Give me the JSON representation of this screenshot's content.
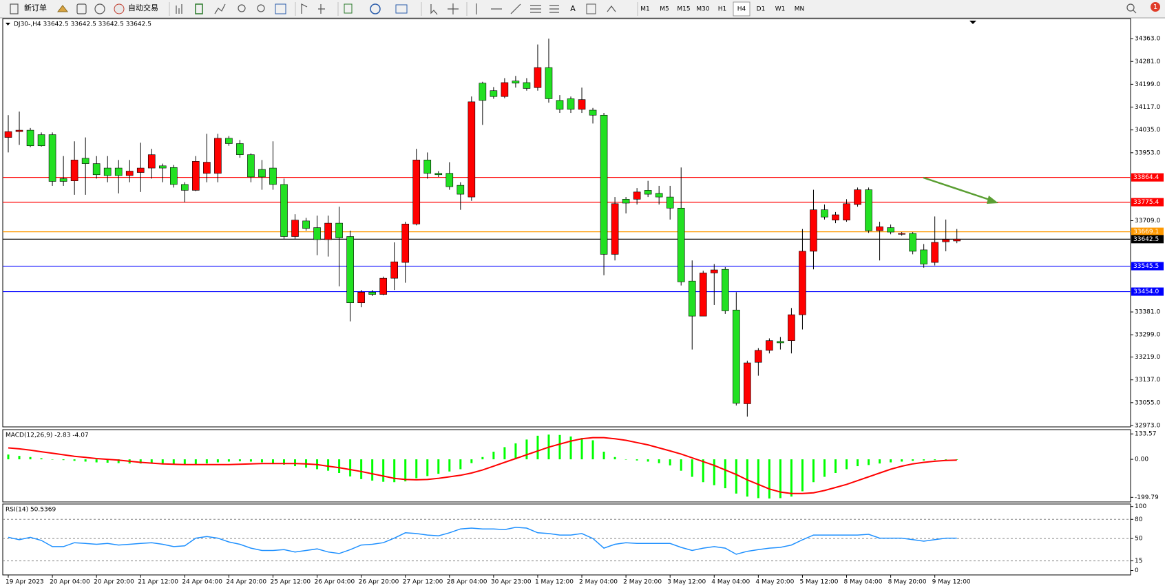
{
  "toolbar": {
    "new_order": "新订单",
    "auto_trading": "自动交易",
    "text_tool": "A",
    "timeframes": [
      "M1",
      "M5",
      "M15",
      "M30",
      "H1",
      "H4",
      "D1",
      "W1",
      "MN"
    ],
    "active_timeframe": 5,
    "notifications": "1"
  },
  "chart_data": [
    {
      "type": "candlestick",
      "title": "DJ30-,H4  33642.5 33642.5 33642.5 33642.5",
      "up_color": "#ff0000",
      "down_color": "#22e022",
      "categories": [
        "19 Apr 2023",
        null,
        null,
        null,
        "20 Apr 04:00",
        null,
        null,
        null,
        "20 Apr 20:00",
        null,
        null,
        null,
        "21 Apr 12:00",
        null,
        null,
        null,
        "24 Apr 04:00",
        null,
        null,
        null,
        "24 Apr 20:00",
        null,
        null,
        null,
        "25 Apr 12:00",
        null,
        null,
        null,
        "26 Apr 04:00",
        null,
        null,
        null,
        "26 Apr 20:00",
        null,
        null,
        null,
        "27 Apr 12:00",
        null,
        null,
        null,
        "28 Apr 04:00",
        null,
        null,
        null,
        "30 Apr 23:00",
        null,
        null,
        null,
        "1 May 12:00",
        null,
        null,
        null,
        "2 May 04:00",
        null,
        null,
        null,
        "2 May 20:00",
        null,
        null,
        null,
        "3 May 12:00",
        null,
        null,
        null,
        "4 May 04:00",
        null,
        null,
        null,
        "4 May 20:00",
        null,
        null,
        null,
        "5 May 12:00",
        null,
        null,
        null,
        "8 May 04:00",
        null,
        null,
        null,
        "8 May 20:00",
        null,
        null,
        null,
        "9 May 12:00",
        null,
        null
      ],
      "open": [
        34008,
        34029,
        34034,
        34018,
        34018,
        33860,
        33852,
        33933,
        33914,
        33898,
        33898,
        33871,
        33882,
        33898,
        33906,
        33900,
        33839,
        33818,
        33879,
        33879,
        34005,
        33986,
        33946,
        33893,
        33898,
        33839,
        33652,
        33708,
        33684,
        33641,
        33700,
        33652,
        33414,
        33452,
        33444,
        33502,
        33559,
        33697,
        33927,
        33879,
        33879,
        33836,
        33794,
        34203,
        34176,
        34155,
        34211,
        34205,
        34187,
        34259,
        34141,
        34147,
        34109,
        34106,
        34088,
        33588,
        33786,
        33786,
        33818,
        33807,
        33794,
        33754,
        33492,
        33366,
        33521,
        33534,
        33388,
        33051,
        33200,
        33243,
        33275,
        33278,
        33371,
        33599,
        33748,
        33711,
        33711,
        33767,
        33820,
        33673,
        33684,
        33660,
        33663,
        33604,
        33559,
        33633,
        33636
      ],
      "high": [
        34088,
        34101,
        34042,
        34026,
        34026,
        33941,
        33994,
        34008,
        33941,
        33941,
        33927,
        33927,
        33989,
        33967,
        33914,
        33909,
        33847,
        33941,
        34021,
        34021,
        34013,
        33999,
        33951,
        33927,
        33994,
        33860,
        33732,
        33719,
        33727,
        33727,
        33759,
        33673,
        33460,
        33460,
        33508,
        33631,
        33705,
        33967,
        33954,
        33887,
        33919,
        33847,
        34155,
        34208,
        34189,
        34221,
        34229,
        34221,
        34342,
        34363,
        34160,
        34155,
        34187,
        34114,
        34096,
        33794,
        33794,
        33826,
        33852,
        33834,
        33834,
        33900,
        33566,
        33529,
        33553,
        33542,
        33452,
        33206,
        33251,
        33286,
        33291,
        33395,
        33679,
        33820,
        33767,
        33740,
        33786,
        33828,
        33828,
        33705,
        33695,
        33668,
        33668,
        33625,
        33724,
        33713,
        33679
      ],
      "low": [
        33954,
        33981,
        33973,
        33975,
        33834,
        33834,
        33802,
        33802,
        33860,
        33847,
        33807,
        33847,
        33812,
        33860,
        33847,
        33828,
        33775,
        33815,
        33847,
        33847,
        33978,
        33935,
        33847,
        33820,
        33820,
        33641,
        33641,
        33673,
        33585,
        33580,
        33473,
        33347,
        33398,
        33438,
        33441,
        33460,
        33486,
        33692,
        33860,
        33866,
        33820,
        33748,
        33780,
        34053,
        34147,
        34149,
        34187,
        34176,
        34176,
        34133,
        34096,
        34096,
        34096,
        34058,
        33513,
        33566,
        33735,
        33767,
        33794,
        33767,
        33713,
        33476,
        33246,
        33366,
        33406,
        33374,
        33045,
        33005,
        33152,
        33232,
        33246,
        33232,
        33318,
        33534,
        33713,
        33700,
        33705,
        33759,
        33665,
        33566,
        33660,
        33655,
        33588,
        33540,
        33548,
        33599,
        33628
      ],
      "close": [
        34029,
        34034,
        33978,
        33978,
        33850,
        33850,
        33927,
        33914,
        33874,
        33871,
        33871,
        33887,
        33898,
        33946,
        33898,
        33839,
        33818,
        33922,
        33919,
        34005,
        33986,
        33946,
        33866,
        33866,
        33839,
        33652,
        33711,
        33681,
        33641,
        33700,
        33647,
        33414,
        33452,
        33444,
        33502,
        33561,
        33697,
        33927,
        33879,
        33874,
        33831,
        33804,
        34136,
        34141,
        34155,
        34205,
        34203,
        34184,
        34259,
        34147,
        34109,
        34109,
        34144,
        34088,
        33588,
        33770,
        33772,
        33812,
        33804,
        33794,
        33754,
        33489,
        33366,
        33521,
        33532,
        33385,
        33053,
        33198,
        33243,
        33278,
        33270,
        33371,
        33599,
        33748,
        33722,
        33730,
        33770,
        33820,
        33673,
        33687,
        33668,
        33663,
        33599,
        33553,
        33631,
        33641,
        33642.5
      ],
      "ylim": [
        32968,
        34435
      ],
      "yticks": [
        {
          "value": 34363,
          "label": "34363.0"
        },
        {
          "value": 34281,
          "label": "34281.0"
        },
        {
          "value": 34199,
          "label": "34199.0"
        },
        {
          "value": 34117,
          "label": "34117.0"
        },
        {
          "value": 34035,
          "label": "34035.0"
        },
        {
          "value": 33953,
          "label": "33953.0"
        },
        {
          "value": 33709,
          "label": "33709.0"
        },
        {
          "value": 33381,
          "label": "33381.0"
        },
        {
          "value": 33299,
          "label": "33299.0"
        },
        {
          "value": 33219,
          "label": "33219.0"
        },
        {
          "value": 33137,
          "label": "33137.0"
        },
        {
          "value": 33055,
          "label": "33055.0"
        },
        {
          "value": 32973,
          "label": "32973.0"
        }
      ],
      "levels": [
        {
          "value": 33864.4,
          "color": "#ff0000"
        },
        {
          "value": 33775.4,
          "color": "#ff0000"
        },
        {
          "value": 33669.1,
          "color": "#ff9900"
        },
        {
          "value": 33642.5,
          "color": "#000000"
        },
        {
          "value": 33545.5,
          "color": "#0000ff"
        },
        {
          "value": 33454,
          "label": "33454.0",
          "color": "#0000ff"
        }
      ]
    },
    {
      "type": "macd",
      "title": "MACD(12,26,9) -2.83 -4.07",
      "histogram": {
        "color": "#00ff00",
        "values": [
          25,
          18,
          12,
          6,
          0,
          -4,
          -8,
          -12,
          -16,
          -18,
          -20,
          -22,
          -22,
          -22,
          -24,
          -26,
          -28,
          -26,
          -22,
          -16,
          -12,
          -10,
          -12,
          -16,
          -20,
          -28,
          -36,
          -44,
          -52,
          -60,
          -72,
          -90,
          -104,
          -112,
          -118,
          -120,
          -116,
          -100,
          -88,
          -76,
          -64,
          -52,
          -20,
          12,
          40,
          64,
          84,
          104,
          124,
          130,
          128,
          120,
          112,
          100,
          40,
          12,
          0,
          -6,
          -12,
          -20,
          -32,
          -60,
          -92,
          -120,
          -136,
          -152,
          -180,
          -196,
          -204,
          -206,
          -204,
          -196,
          -168,
          -120,
          -92,
          -72,
          -52,
          -36,
          -30,
          -22,
          -16,
          -12,
          -8,
          -6,
          -4,
          -3,
          -2.83
        ]
      },
      "signal": {
        "color": "#ff0000",
        "values": [
          60,
          55,
          48,
          40,
          32,
          24,
          16,
          10,
          4,
          0,
          -4,
          -10,
          -16,
          -20,
          -24,
          -26,
          -28,
          -28,
          -28,
          -28,
          -28,
          -26,
          -24,
          -22,
          -22,
          -22,
          -22,
          -24,
          -28,
          -36,
          -44,
          -54,
          -64,
          -76,
          -88,
          -100,
          -106,
          -108,
          -106,
          -100,
          -92,
          -84,
          -72,
          -56,
          -36,
          -16,
          4,
          24,
          44,
          64,
          80,
          96,
          108,
          114,
          114,
          108,
          100,
          88,
          76,
          60,
          44,
          28,
          8,
          -12,
          -32,
          -56,
          -80,
          -108,
          -132,
          -156,
          -172,
          -180,
          -180,
          -176,
          -164,
          -148,
          -132,
          -112,
          -92,
          -72,
          -52,
          -36,
          -24,
          -16,
          -10,
          -6,
          -4.07
        ]
      },
      "ylim": [
        -224,
        156
      ],
      "yticks": [
        133.57,
        {
          "value": 0,
          "label": "0.00"
        },
        -199.79
      ]
    },
    {
      "type": "line",
      "title": "RSI(14) 50.5369",
      "color": "#1e90ff",
      "values": [
        51.8,
        48.2,
        51.8,
        47,
        37.3,
        37.3,
        43.4,
        42.2,
        41,
        42.2,
        39.8,
        41,
        42.2,
        43.4,
        41,
        37.3,
        38.5,
        50.6,
        53,
        50.6,
        44.6,
        41,
        34.9,
        31.3,
        31.3,
        32.5,
        28.9,
        31.3,
        33.7,
        28.9,
        26.5,
        32.5,
        39.8,
        41,
        43.4,
        50.6,
        59,
        57.8,
        55.4,
        54.2,
        59,
        65,
        66.3,
        65,
        65,
        63.9,
        67.5,
        66.3,
        59,
        57.8,
        55.4,
        55.4,
        57.8,
        50,
        34.9,
        41,
        43.4,
        42.2,
        42.2,
        42.2,
        42.2,
        36.1,
        31.3,
        34.9,
        37.3,
        34.9,
        25.3,
        30,
        32.5,
        34.9,
        36.1,
        39.8,
        48,
        55.4,
        55.4,
        55.4,
        55.4,
        55.4,
        56.6,
        50.6,
        50.6,
        50.6,
        48.2,
        45.8,
        48.2,
        50.6,
        50.5369
      ],
      "levels": [
        15,
        50,
        80
      ],
      "ylim": [
        -7,
        104
      ],
      "yticks": [
        100,
        80,
        50,
        15,
        0
      ]
    }
  ]
}
